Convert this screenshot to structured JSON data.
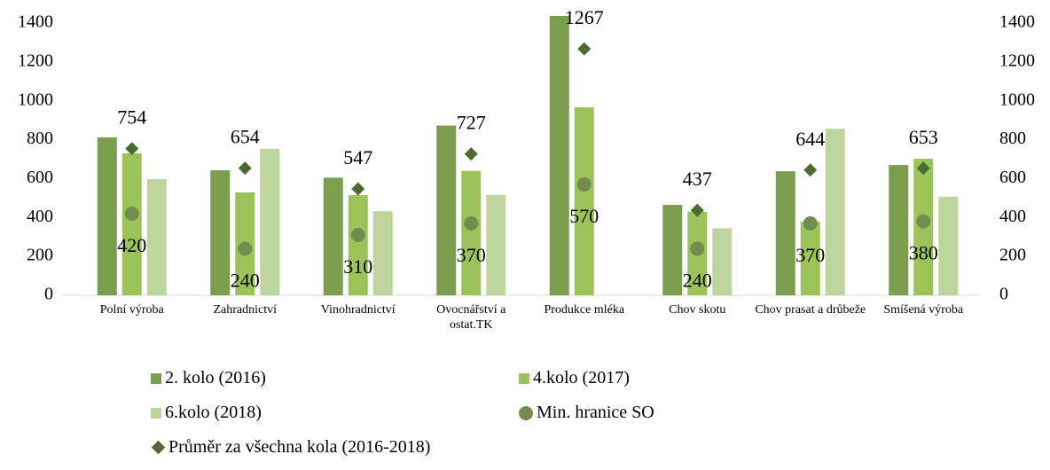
{
  "chart_data": {
    "type": "bar",
    "categories": [
      "Polní výroba",
      "Zahradnictví",
      "Vinohradnictví",
      "Ovocnářství a ostat.TK",
      "Produkce mléka",
      "Chov skotu",
      "Chov prasat a drůbeže",
      "Smíšená výroba"
    ],
    "series": [
      {
        "name": "2. kolo (2016)",
        "type": "bar",
        "color": "#7a9e4f",
        "values": [
          812,
          643,
          605,
          873,
          1437,
          465,
          638,
          670
        ]
      },
      {
        "name": "4.kolo (2017)",
        "type": "bar",
        "color": "#9bc35a",
        "values": [
          730,
          529,
          515,
          640,
          967,
          430,
          378,
          702
        ]
      },
      {
        "name": "6.kolo (2018)",
        "type": "bar",
        "color": "#bdd59c",
        "values": [
          598,
          753,
          432,
          515,
          null,
          344,
          856,
          507
        ]
      },
      {
        "name": "Min. hranice SO",
        "type": "circle",
        "color": "#718c4e",
        "values": [
          420,
          240,
          310,
          370,
          570,
          240,
          370,
          380
        ]
      },
      {
        "name": "Průměr za všechna kola (2016-2018)",
        "type": "diamond",
        "color": "#4b6b31",
        "values": [
          754,
          654,
          547,
          727,
          1267,
          437,
          644,
          653
        ]
      }
    ],
    "ylim": [
      0,
      1400
    ],
    "yticks": [
      0,
      200,
      400,
      600,
      800,
      1000,
      1200,
      1400
    ],
    "y2lim": [
      0,
      1400
    ],
    "y2ticks": [
      0,
      200,
      400,
      600,
      800,
      1000,
      1200,
      1400
    ],
    "grid": false,
    "legend": "bottom"
  }
}
